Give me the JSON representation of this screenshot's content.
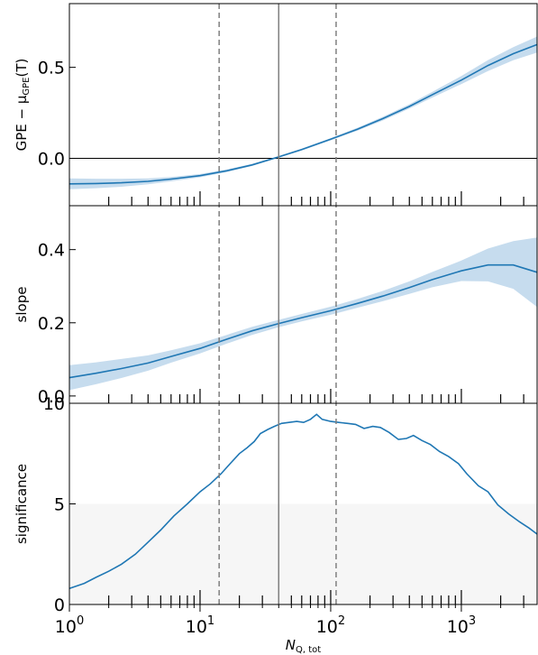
{
  "chart_data": [
    {
      "type": "line",
      "panel": "top",
      "ylabel_prefix": "GPE − μ",
      "ylabel_sub": "GPE",
      "ylabel_suffix": "(T)",
      "xscale": "log",
      "xlim": [
        1,
        3800
      ],
      "ylim": [
        -0.26,
        0.85
      ],
      "yticks": [
        0.0,
        0.5
      ],
      "ytick_labels": [
        "0.0",
        "0.5"
      ],
      "hline": 0.0,
      "color": "#1f77b4",
      "band_color": "#c6dcee",
      "x": [
        1,
        1.6,
        2.5,
        4,
        6,
        10,
        16,
        25,
        40,
        60,
        100,
        160,
        250,
        400,
        600,
        1000,
        1600,
        2500,
        3800
      ],
      "y": [
        -0.14,
        -0.138,
        -0.134,
        -0.126,
        -0.114,
        -0.095,
        -0.068,
        -0.036,
        0.008,
        0.048,
        0.105,
        0.16,
        0.218,
        0.285,
        0.35,
        0.43,
        0.51,
        0.575,
        0.625
      ],
      "band": [
        0.03,
        0.026,
        0.022,
        0.016,
        0.012,
        0.009,
        0.007,
        0.006,
        0.005,
        0.005,
        0.006,
        0.008,
        0.01,
        0.012,
        0.016,
        0.022,
        0.03,
        0.036,
        0.044
      ],
      "rug": [
        2,
        3,
        4,
        5,
        6,
        7,
        8,
        9,
        10,
        20,
        30,
        50,
        60,
        70,
        80,
        90,
        100,
        200,
        300,
        400,
        500,
        600,
        700,
        800,
        900,
        1000,
        2000,
        3000
      ]
    },
    {
      "type": "line",
      "panel": "middle",
      "ylabel": "slope",
      "xscale": "log",
      "xlim": [
        1,
        3800
      ],
      "ylim": [
        -0.02,
        0.52
      ],
      "yticks": [
        0.0,
        0.2,
        0.4
      ],
      "ytick_labels": [
        "0.0",
        "0.2",
        "0.4"
      ],
      "color": "#1f77b4",
      "band_color": "#c6dcee",
      "x": [
        1,
        1.6,
        2.5,
        4,
        6,
        10,
        16,
        25,
        40,
        60,
        100,
        160,
        250,
        400,
        600,
        1000,
        1600,
        2500,
        3800
      ],
      "y": [
        0.05,
        0.062,
        0.075,
        0.09,
        0.108,
        0.13,
        0.155,
        0.178,
        0.198,
        0.214,
        0.233,
        0.253,
        0.273,
        0.296,
        0.318,
        0.342,
        0.358,
        0.358,
        0.338
      ],
      "band": [
        0.034,
        0.03,
        0.026,
        0.021,
        0.017,
        0.014,
        0.012,
        0.011,
        0.01,
        0.01,
        0.011,
        0.012,
        0.014,
        0.017,
        0.021,
        0.028,
        0.045,
        0.065,
        0.095
      ],
      "rug": [
        2,
        3,
        4,
        5,
        6,
        7,
        8,
        9,
        10,
        20,
        30,
        50,
        60,
        70,
        80,
        90,
        100,
        200,
        300,
        400,
        500,
        600,
        700,
        800,
        900,
        1000,
        2000,
        3000
      ]
    },
    {
      "type": "line",
      "panel": "bottom",
      "ylabel": "significance",
      "xlabel_main": "N",
      "xlabel_sub": "Q, tot",
      "xscale": "log",
      "xlim": [
        1,
        3800
      ],
      "ylim": [
        0,
        10
      ],
      "yticks": [
        0,
        5,
        10
      ],
      "ytick_labels": [
        "0",
        "5",
        "10"
      ],
      "xticks": [
        1,
        10,
        100,
        1000
      ],
      "xtick_labels": [
        {
          "base": "10",
          "exp": "0"
        },
        {
          "base": "10",
          "exp": "1"
        },
        {
          "base": "10",
          "exp": "2"
        },
        {
          "base": "10",
          "exp": "3"
        }
      ],
      "color": "#1f77b4",
      "shading_levels": [
        1,
        2,
        3,
        4,
        5
      ],
      "shading_colors": [
        "#dddddd",
        "#e4e4e4",
        "#eaeaea",
        "#f0f0f0",
        "#f6f6f6"
      ],
      "x": [
        1,
        1.3,
        1.6,
        2,
        2.5,
        3.2,
        4,
        5,
        6.3,
        8,
        10,
        12,
        14.5,
        17,
        20,
        23,
        26,
        29,
        33,
        37,
        42,
        48,
        55,
        62,
        70,
        78,
        86,
        100,
        115,
        135,
        155,
        180,
        210,
        240,
        280,
        330,
        380,
        430,
        500,
        580,
        680,
        800,
        950,
        1100,
        1350,
        1600,
        1900,
        2300,
        2800,
        3300,
        3800
      ],
      "y": [
        0.8,
        1.05,
        1.35,
        1.65,
        2.0,
        2.5,
        3.1,
        3.7,
        4.4,
        5.0,
        5.6,
        6.0,
        6.5,
        7.0,
        7.5,
        7.8,
        8.1,
        8.5,
        8.7,
        8.85,
        9.0,
        9.05,
        9.1,
        9.05,
        9.2,
        9.45,
        9.2,
        9.1,
        9.05,
        9.0,
        8.95,
        8.75,
        8.85,
        8.8,
        8.55,
        8.2,
        8.25,
        8.4,
        8.15,
        7.95,
        7.6,
        7.35,
        7.0,
        6.5,
        5.9,
        5.6,
        4.95,
        4.5,
        4.1,
        3.8,
        3.5
      ],
      "rug": [
        2,
        3,
        4,
        5,
        6,
        7,
        8,
        9,
        10,
        20,
        30,
        50,
        60,
        70,
        80,
        90,
        100,
        200,
        300,
        400,
        500,
        600,
        700,
        800,
        900,
        1000,
        2000,
        3000
      ]
    }
  ],
  "vlines": [
    {
      "x": 14,
      "style": "dashed",
      "color": "#7f7f7f"
    },
    {
      "x": 40,
      "style": "solid",
      "color": "#7f7f7f"
    },
    {
      "x": 110,
      "style": "dashed",
      "color": "#7f7f7f"
    }
  ]
}
